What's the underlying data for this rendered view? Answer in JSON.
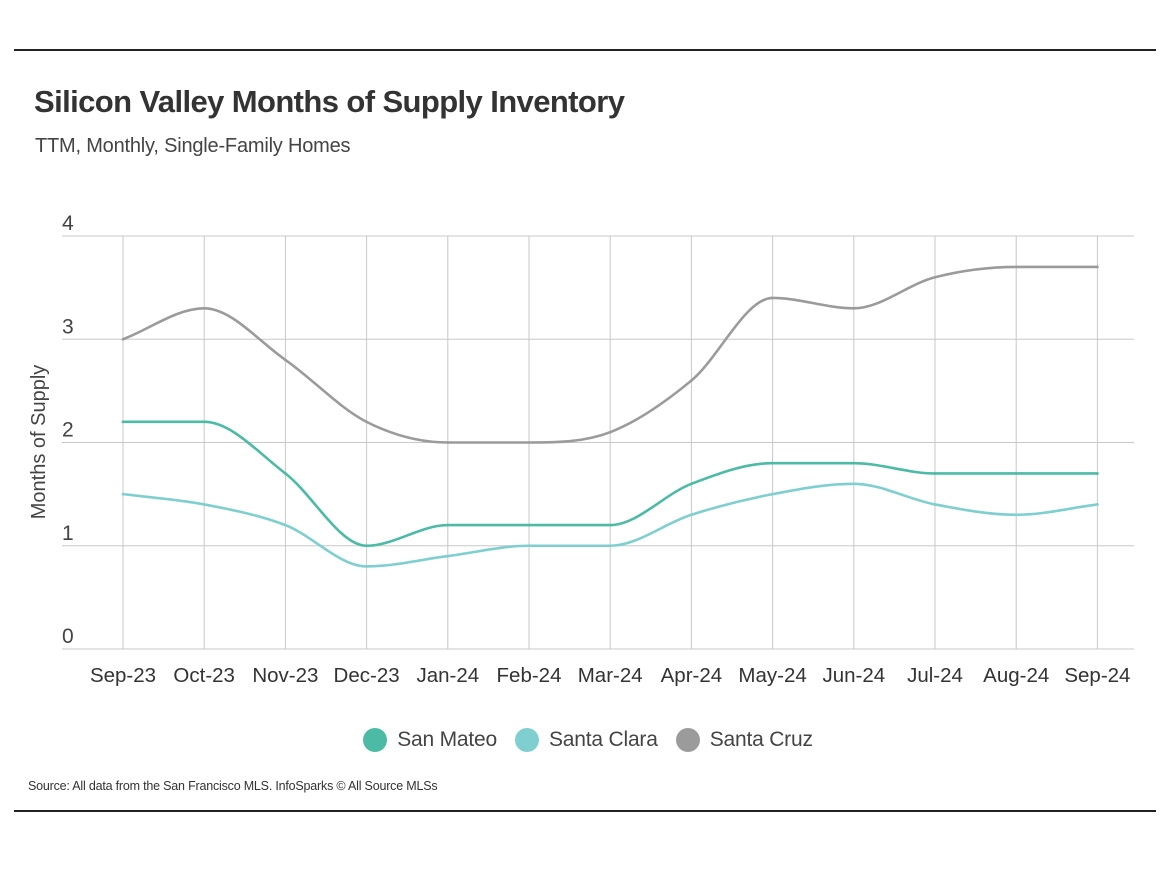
{
  "chart_data": {
    "type": "line",
    "title": "Silicon Valley Months of Supply Inventory",
    "subtitle": "TTM, Monthly, Single-Family Homes",
    "xlabel": "",
    "ylabel": "Months of Supply",
    "ylim": [
      0,
      4
    ],
    "yticks": [
      "0",
      "1",
      "2",
      "3",
      "4"
    ],
    "categories": [
      "Sep-23",
      "Oct-23",
      "Nov-23",
      "Dec-23",
      "Jan-24",
      "Feb-24",
      "Mar-24",
      "Apr-24",
      "May-24",
      "Jun-24",
      "Jul-24",
      "Aug-24",
      "Sep-24"
    ],
    "series": [
      {
        "name": "San Mateo",
        "color": "#4bbba5",
        "values": [
          2.2,
          2.2,
          1.7,
          1.0,
          1.2,
          1.2,
          1.2,
          1.6,
          1.8,
          1.8,
          1.7,
          1.7,
          1.7
        ]
      },
      {
        "name": "Santa Clara",
        "color": "#7fcfd0",
        "values": [
          1.5,
          1.4,
          1.2,
          0.8,
          0.9,
          1.0,
          1.0,
          1.3,
          1.5,
          1.6,
          1.4,
          1.3,
          1.4
        ]
      },
      {
        "name": "Santa Cruz",
        "color": "#9b9b9b",
        "values": [
          3.0,
          3.3,
          2.8,
          2.2,
          2.0,
          2.0,
          2.1,
          2.6,
          3.4,
          3.3,
          3.6,
          3.7,
          3.7
        ]
      }
    ],
    "grid": true,
    "legend_position": "bottom-center"
  },
  "source": "Source:  All data from the San Francisco MLS. InfoSparks © All Source MLSs"
}
